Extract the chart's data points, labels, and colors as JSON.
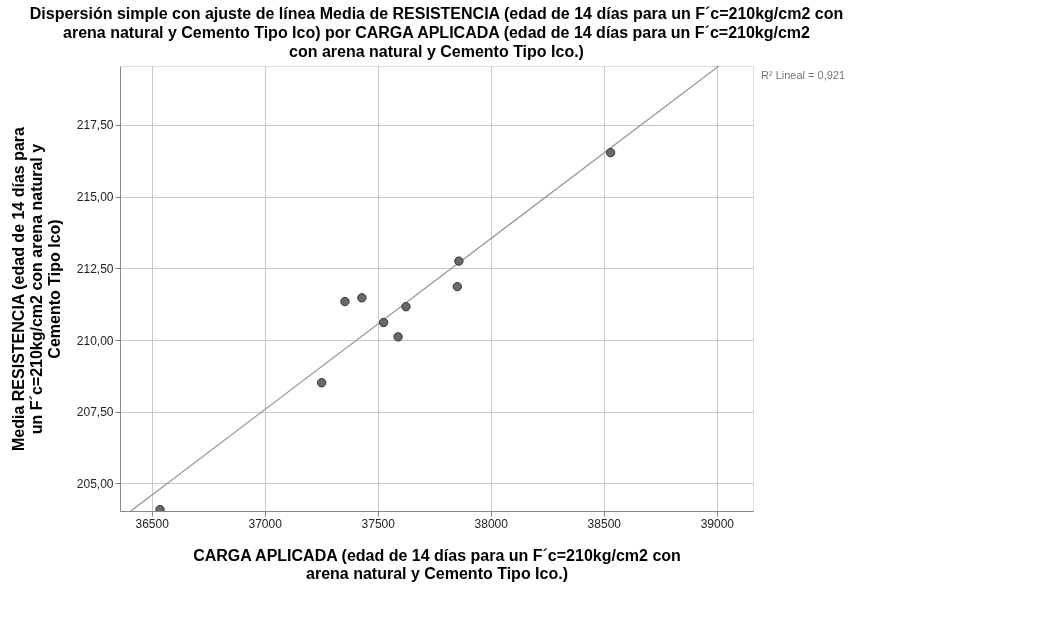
{
  "chart_data": {
    "type": "scatter",
    "title": "Dispersión simple con ajuste de línea Media de RESISTENCIA (edad de 14 días para un F´c=210kg/cm2 con\narena natural y Cemento Tipo Ico) por CARGA APLICADA (edad de 14 días para un F´c=210kg/cm2\ncon arena natural y Cemento Tipo Ico.)",
    "xlabel": "CARGA APLICADA (edad de 14 días para un F´c=210kg/cm2 con\narena natural y Cemento Tipo Ico.)",
    "ylabel": "Media RESISTENCIA (edad de 14 días para\nun F´c=210kg/cm2 con arena natural y\nCemento Tipo Ico)",
    "annotations": [
      "R² Lineal = 0,921"
    ],
    "series": [
      {
        "color": "#696969",
        "marker": "circle",
        "x": [
          38530,
          37859,
          37852,
          37355,
          37430,
          37625,
          37526,
          37590,
          37252,
          36537
        ],
        "values": [
          216.53,
          212.75,
          211.86,
          211.34,
          211.47,
          211.16,
          210.61,
          210.11,
          208.51,
          204.09
        ]
      },
      {
        "type": "line",
        "color": "#999999",
        "x": [
          36408,
          39009
        ],
        "values": [
          204.04,
          219.55
        ]
      }
    ],
    "xlim": [
      36360,
      39160
    ],
    "ylim": [
      204.04,
      219.55
    ],
    "xticks": [
      36500,
      37000,
      37500,
      38000,
      38500,
      39000
    ],
    "yticks": [
      {
        "value": 205,
        "label": "205,00"
      },
      {
        "value": 207.5,
        "label": "207,50"
      },
      {
        "value": 210,
        "label": "210,00"
      },
      {
        "value": 212.5,
        "label": "212,50"
      },
      {
        "value": 215,
        "label": "215,00"
      },
      {
        "value": 217.5,
        "label": "217,50"
      }
    ],
    "grid": true
  }
}
